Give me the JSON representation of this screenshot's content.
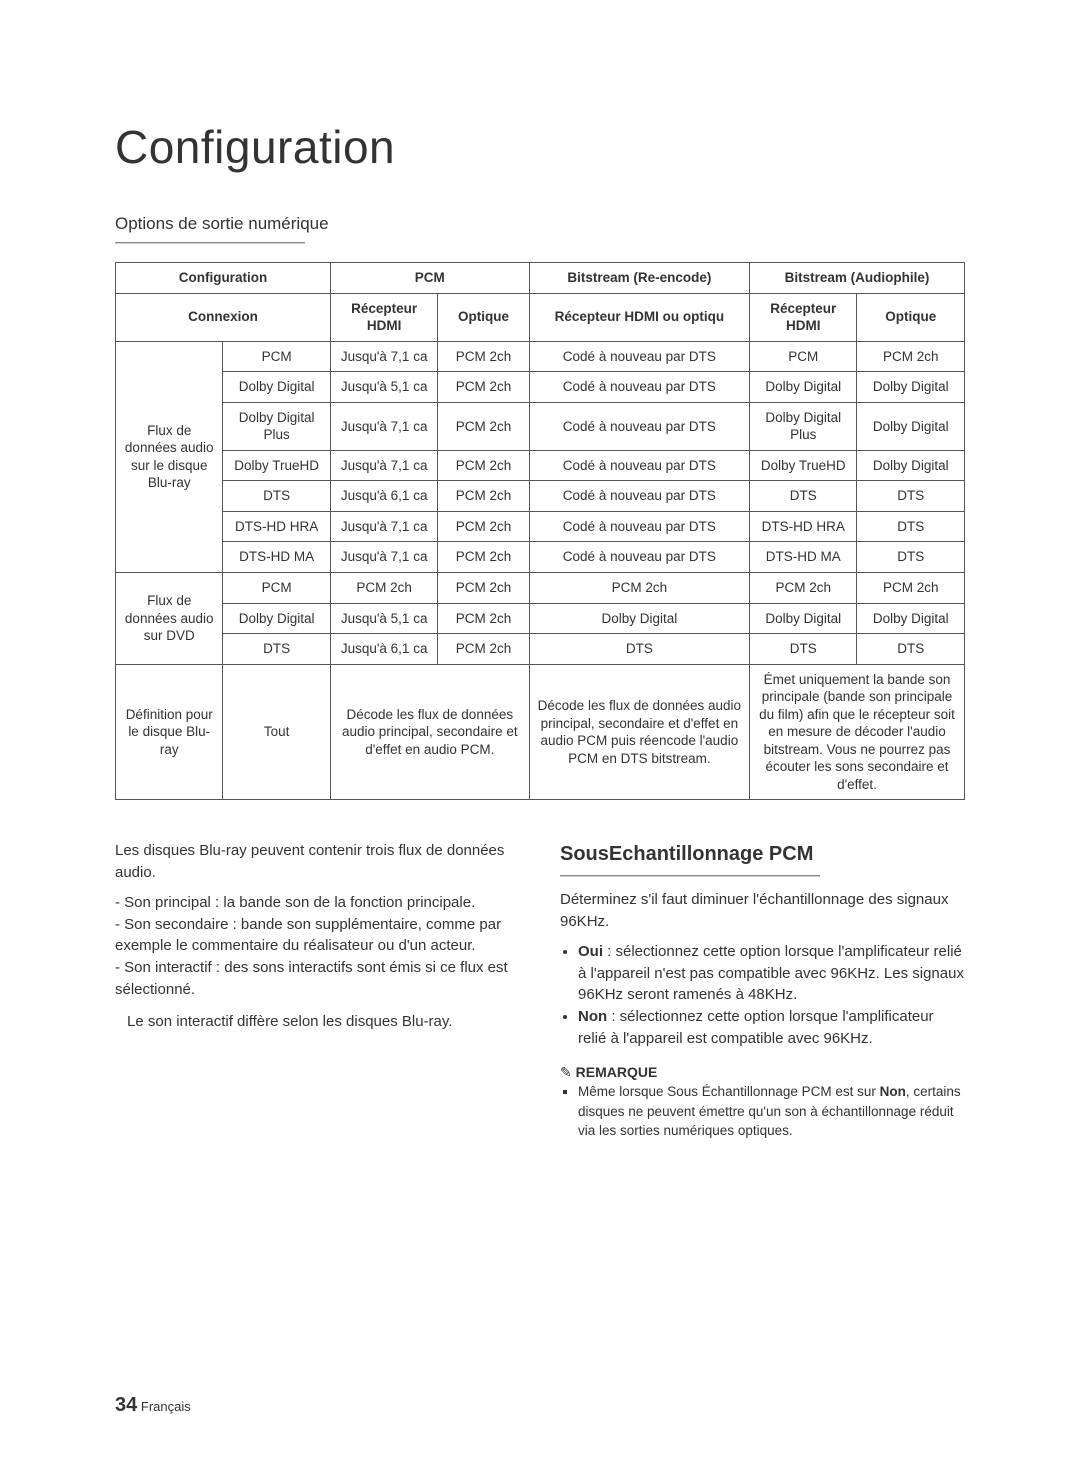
{
  "page": {
    "title": "Configuration",
    "subtitle": "Options de sortie numérique",
    "page_number": "34",
    "page_lang": "Français"
  },
  "table": {
    "col_widths_pct": [
      10,
      10,
      10,
      8.5,
      20.5,
      10,
      10
    ],
    "head": {
      "config": "Configuration",
      "pcm": "PCM",
      "bit_re": "Bitstream (Re-encode)",
      "bit_au": "Bitstream (Audiophile)",
      "conn": "Connexion",
      "hdmi": "Récepteur HDMI",
      "opt": "Optique",
      "hdmi_or_opt": "Récepteur HDMI ou optiqu"
    },
    "groups": [
      {
        "label": "Flux de données audio sur le disque Blu-ray",
        "rows": [
          {
            "fmt": "PCM",
            "c": [
              "Jusqu'à 7,1 ca",
              "PCM 2ch",
              "Codé à nouveau par DTS",
              "PCM",
              "PCM 2ch"
            ]
          },
          {
            "fmt": "Dolby Digital",
            "c": [
              "Jusqu'à 5,1 ca",
              "PCM 2ch",
              "Codé à nouveau par DTS",
              "Dolby Digital",
              "Dolby Digital"
            ]
          },
          {
            "fmt": "Dolby Digital Plus",
            "c": [
              "Jusqu'à 7,1 ca",
              "PCM 2ch",
              "Codé à nouveau par DTS",
              "Dolby Digital Plus",
              "Dolby Digital"
            ]
          },
          {
            "fmt": "Dolby TrueHD",
            "c": [
              "Jusqu'à 7,1 ca",
              "PCM 2ch",
              "Codé à nouveau par DTS",
              "Dolby TrueHD",
              "Dolby Digital"
            ]
          },
          {
            "fmt": "DTS",
            "c": [
              "Jusqu'à 6,1 ca",
              "PCM 2ch",
              "Codé à nouveau par DTS",
              "DTS",
              "DTS"
            ]
          },
          {
            "fmt": "DTS-HD HRA",
            "c": [
              "Jusqu'à 7,1 ca",
              "PCM 2ch",
              "Codé à nouveau par DTS",
              "DTS-HD HRA",
              "DTS"
            ]
          },
          {
            "fmt": "DTS-HD MA",
            "c": [
              "Jusqu'à 7,1 ca",
              "PCM 2ch",
              "Codé à nouveau par DTS",
              "DTS-HD MA",
              "DTS"
            ]
          }
        ]
      },
      {
        "label": "Flux de données audio sur DVD",
        "rows": [
          {
            "fmt": "PCM",
            "c": [
              "PCM 2ch",
              "PCM 2ch",
              "PCM 2ch",
              "PCM 2ch",
              "PCM 2ch"
            ]
          },
          {
            "fmt": "Dolby Digital",
            "c": [
              "Jusqu'à 5,1 ca",
              "PCM 2ch",
              "Dolby Digital",
              "Dolby Digital",
              "Dolby Digital"
            ]
          },
          {
            "fmt": "DTS",
            "c": [
              "Jusqu'à 6,1 ca",
              "PCM 2ch",
              "DTS",
              "DTS",
              "DTS"
            ]
          }
        ]
      }
    ],
    "def_row": {
      "label": "Définition pour le disque Blu-ray",
      "fmt": "Tout",
      "pcm_text": "Décode les flux de données audio principal, secondaire et d'effet en audio PCM.",
      "re_text": "Décode les flux de données audio principal, secondaire et d'effet en audio PCM puis réencode l'audio PCM en DTS bitstream.",
      "au_text": "Émet uniquement la bande son principale (bande son principale du film) afin que le récepteur soit en mesure de décoder l'audio bitstream. Vous ne pourrez pas écouter les sons secondaire et d'effet."
    }
  },
  "left_col": {
    "intro": "Les disques Blu-ray peuvent contenir trois flux de données audio.",
    "items": [
      "Son principal : la bande son de la fonction principale.",
      "Son secondaire : bande son supplémentaire, comme par exemple le commentaire du réalisateur ou d'un acteur.",
      "Son interactif : des sons interactifs sont émis si ce flux est sélectionné."
    ],
    "note": "Le son interactif diffère selon les disques Blu-ray."
  },
  "right_col": {
    "heading": "SousEchantillonnage PCM",
    "intro": "Déterminez s'il faut diminuer l'échantillonnage des signaux 96KHz.",
    "opts": [
      {
        "k": "Oui",
        "t": " : sélectionnez cette option lorsque l'amplificateur relié à l'appareil n'est pas compatible avec 96KHz. Les signaux 96KHz seront ramenés à 48KHz."
      },
      {
        "k": "Non",
        "t": " : sélectionnez cette option lorsque l'amplificateur relié à l'appareil est compatible avec 96KHz."
      }
    ],
    "remark_title": "REMARQUE",
    "remark_item_pre": "Même lorsque Sous Échantillonnage PCM est sur ",
    "remark_item_bold": "Non",
    "remark_item_post": ", certains disques ne peuvent émettre qu'un son à échantillonnage réduit via les sorties numériques optiques."
  }
}
